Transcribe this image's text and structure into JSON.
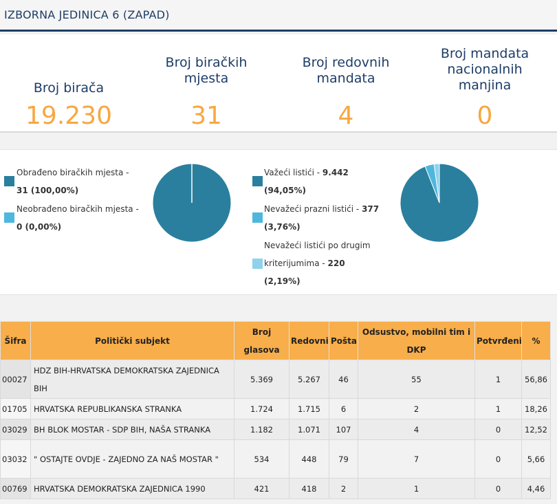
{
  "header": {
    "title": "IZBORNA JEDINICA 6 (ZAPAD)"
  },
  "stats": [
    {
      "label": "Broj birača",
      "value": "19.230"
    },
    {
      "label": "Broj biračkih mjesta",
      "value": "31"
    },
    {
      "label": "Broj redovnih mandata",
      "value": "4"
    },
    {
      "label": "Broj mandata nacionalnih manjina",
      "value": "0"
    }
  ],
  "colors": {
    "primary": "#2a7f9e",
    "light": "#4fb7dd",
    "lighter": "#8fd2ec",
    "accent": "#f7a740"
  },
  "stations_chart": {
    "type": "pie",
    "slices": [
      {
        "label": "Obrađeno biračkih mjesta - ",
        "value_text": "31 (100,00%)",
        "value": 100.0,
        "color": "#2a7f9e"
      },
      {
        "label": "Neobrađeno biračkih mjesta - ",
        "value_text": "0 (0,00%)",
        "value": 0.0,
        "color": "#4fb7dd"
      }
    ]
  },
  "ballots_chart": {
    "type": "pie",
    "slices": [
      {
        "label": "Važeći listići - ",
        "count": "9.442",
        "pct": "(94,05%)",
        "value": 94.05,
        "color": "#2a7f9e"
      },
      {
        "label": "Nevažeći prazni listići - ",
        "count": "377",
        "pct": "(3,76%)",
        "value": 3.76,
        "color": "#4fb7dd"
      },
      {
        "label_line1": "Nevažeći listići po drugim",
        "label": "kriterijumima - ",
        "count": "220",
        "pct": "(2,19%)",
        "value": 2.19,
        "color": "#8fd2ec"
      }
    ]
  },
  "table": {
    "headers": {
      "code": "Šifra",
      "subject": "Politički subjekt",
      "votes": "Broj glasova",
      "regular": "Redovni",
      "mail": "Pošta",
      "absent": "Odsustvo, mobilni tim i DKP",
      "confirmed": "Potvrđeni",
      "pct": "%"
    },
    "rows": [
      {
        "code": "00027",
        "subject": "HDZ BIH-HRVATSKA DEMOKRATSKA ZAJEDNICA BIH",
        "votes": "5.369",
        "regular": "5.267",
        "mail": "46",
        "absent": "55",
        "confirmed": "1",
        "pct": "56,86"
      },
      {
        "code": "01705",
        "subject": "HRVATSKA REPUBLIKANSKA STRANKA",
        "votes": "1.724",
        "regular": "1.715",
        "mail": "6",
        "absent": "2",
        "confirmed": "1",
        "pct": "18,26"
      },
      {
        "code": "03029",
        "subject": "BH BLOK MOSTAR - SDP BIH, NAŠA STRANKA",
        "votes": "1.182",
        "regular": "1.071",
        "mail": "107",
        "absent": "4",
        "confirmed": "0",
        "pct": "12,52"
      },
      {
        "code": "03032",
        "subject": "\" OSTAJTE OVDJE - ZAJEDNO ZA NAŠ MOSTAR \"",
        "votes": "534",
        "regular": "448",
        "mail": "79",
        "absent": "7",
        "confirmed": "0",
        "pct": "5,66"
      },
      {
        "code": "00769",
        "subject": "HRVATSKA DEMOKRATSKA ZAJEDNICA 1990",
        "votes": "421",
        "regular": "418",
        "mail": "2",
        "absent": "1",
        "confirmed": "0",
        "pct": "4,46"
      }
    ]
  }
}
